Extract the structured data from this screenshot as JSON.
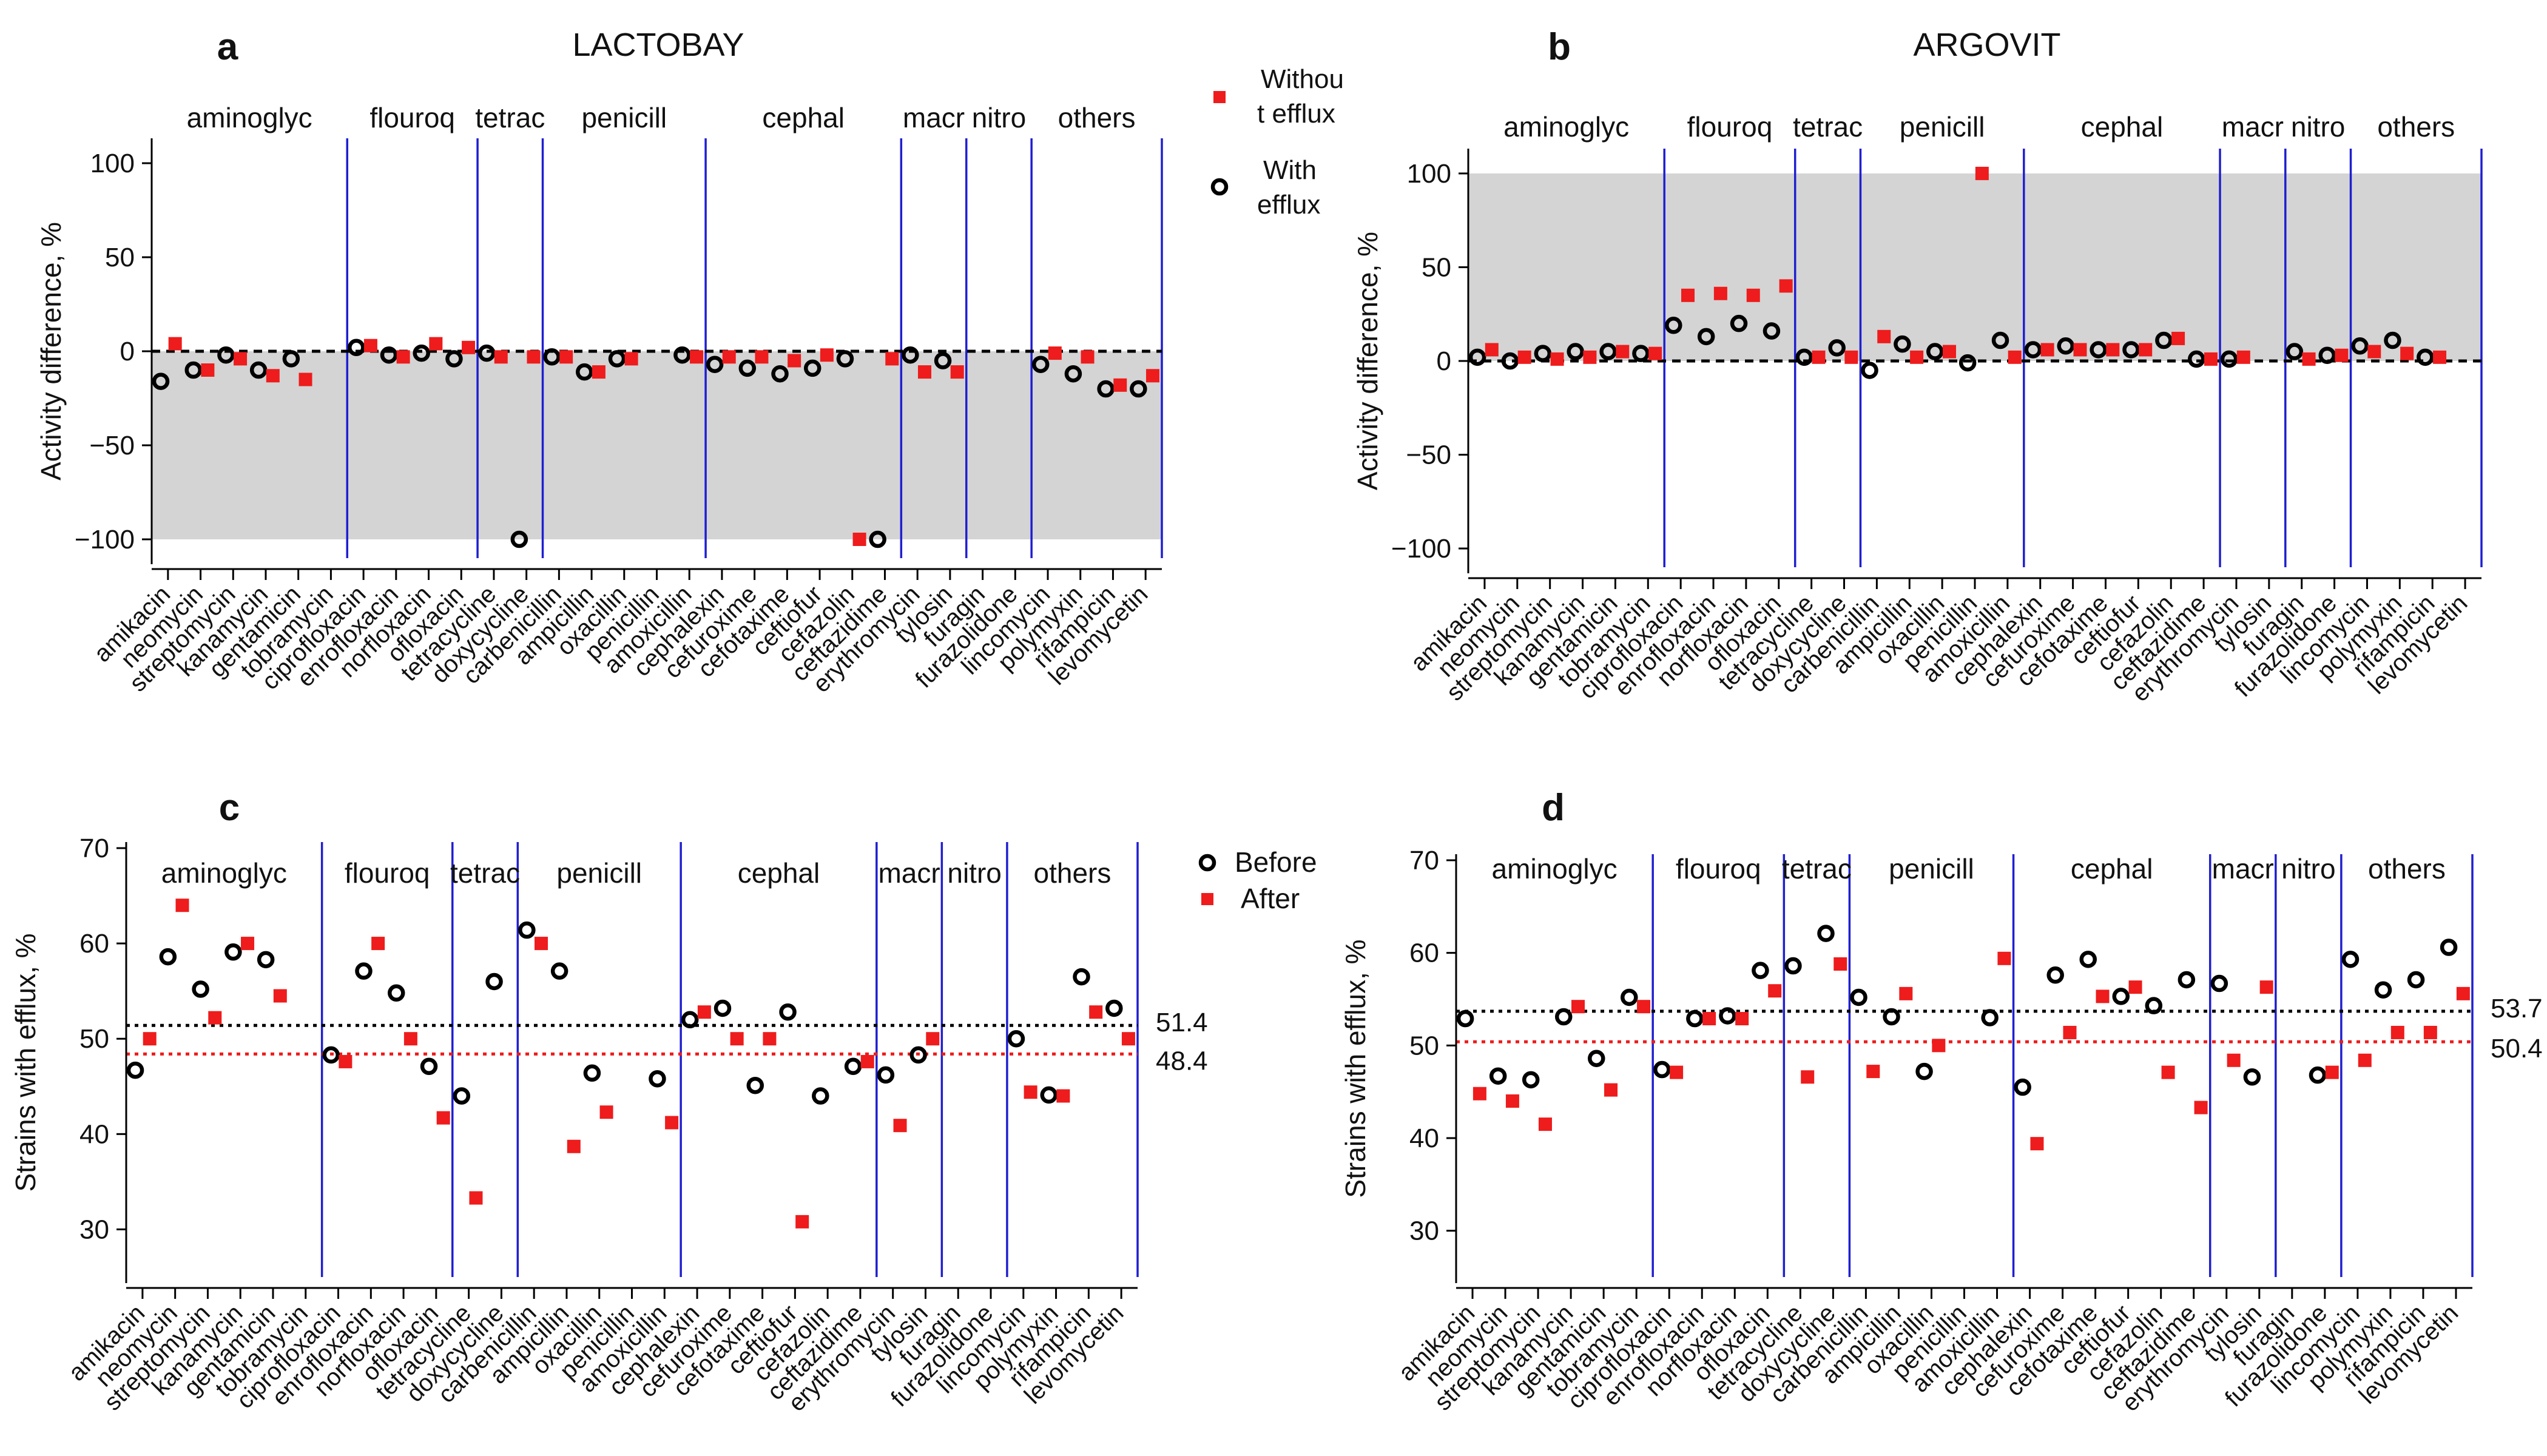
{
  "chart_data": [
    {
      "id": "a",
      "type": "scatter",
      "panel_letter": "a",
      "title": "LACTOBAY",
      "xlabel": "",
      "ylabel": "Activity difference, %",
      "ylim": [
        -110,
        110
      ],
      "yticks": [
        100,
        50,
        0,
        -50,
        -100
      ],
      "ytick_labels": [
        "100",
        "50",
        "0",
        "−50",
        "−100"
      ],
      "shaded_range": [
        -100,
        0
      ],
      "reference_lines": [
        {
          "value": 0,
          "color": "#000000",
          "label": ""
        }
      ],
      "legend": {
        "position": "top-right",
        "entries": [
          {
            "marker": "after",
            "lines": [
              "Withou",
              "t efflux"
            ]
          },
          {
            "marker": "before",
            "lines": [
              "With",
              "efflux"
            ]
          }
        ]
      },
      "groups": [
        {
          "label": "aminoglyc",
          "start": 0,
          "end": 6
        },
        {
          "label": "flouroq",
          "start": 6,
          "end": 10
        },
        {
          "label": "tetrac",
          "start": 10,
          "end": 12
        },
        {
          "label": "penicill",
          "start": 12,
          "end": 17
        },
        {
          "label": "cephal",
          "start": 17,
          "end": 23
        },
        {
          "label": "macr",
          "start": 23,
          "end": 25
        },
        {
          "label": "nitro",
          "start": 25,
          "end": 27
        },
        {
          "label": "others",
          "start": 27,
          "end": 31
        }
      ],
      "categories": [
        "amikacin",
        "neomycin",
        "streptomycin",
        "kanamycin",
        "gentamicin",
        "tobramycin",
        "ciprofloxacin",
        "enrofloxacin",
        "norfloxacin",
        "ofloxacin",
        "tetracycline",
        "doxycycline",
        "carbenicillin",
        "ampicillin",
        "oxacillin",
        "penicillin",
        "amoxicillin",
        "cephalexin",
        "cefuroxime",
        "cefotaxime",
        "ceftiofur",
        "cefazolin",
        "ceftazidime",
        "erythromycin",
        "tylosin",
        "furagin",
        "furazolidone",
        "lincomycin",
        "polymyxin",
        "rifampicin",
        "levomycetin"
      ],
      "series": [
        {
          "name": "With efflux",
          "marker": "before",
          "values": [
            -16,
            -10,
            -2,
            -10,
            -4,
            null,
            2,
            -2,
            -1,
            -4,
            -1,
            -100,
            -3,
            -11,
            -4,
            null,
            -2,
            -7,
            -9,
            -12,
            -9,
            -4,
            -100,
            -2,
            -5,
            null,
            null,
            -7,
            -12,
            -20,
            -20
          ]
        },
        {
          "name": "Without efflux",
          "marker": "after",
          "values": [
            4,
            -10,
            -4,
            -13,
            -15,
            null,
            3,
            -3,
            4,
            2,
            -3,
            -3,
            -3,
            -11,
            -4,
            null,
            -3,
            -3,
            -3,
            -5,
            -2,
            -100,
            -4,
            -11,
            -11,
            null,
            null,
            -1,
            -3,
            -18,
            -13
          ]
        }
      ]
    },
    {
      "id": "b",
      "type": "scatter",
      "panel_letter": "b",
      "title": "ARGOVIT",
      "xlabel": "",
      "ylabel": "Activity difference, %",
      "ylim": [
        -110,
        110
      ],
      "yticks": [
        100,
        50,
        0,
        -50,
        -100
      ],
      "ytick_labels": [
        "100",
        "50",
        "0",
        "−50",
        "−100"
      ],
      "shaded_range": [
        0,
        100
      ],
      "reference_lines": [
        {
          "value": 0,
          "color": "#000000",
          "label": ""
        }
      ],
      "legend": null,
      "groups": [
        {
          "label": "aminoglyc",
          "start": 0,
          "end": 6
        },
        {
          "label": "flouroq",
          "start": 6,
          "end": 10
        },
        {
          "label": "tetrac",
          "start": 10,
          "end": 12
        },
        {
          "label": "penicill",
          "start": 12,
          "end": 17
        },
        {
          "label": "cephal",
          "start": 17,
          "end": 23
        },
        {
          "label": "macr",
          "start": 23,
          "end": 25
        },
        {
          "label": "nitro",
          "start": 25,
          "end": 27
        },
        {
          "label": "others",
          "start": 27,
          "end": 31
        }
      ],
      "categories": [
        "amikacin",
        "neomycin",
        "streptomycin",
        "kanamycin",
        "gentamicin",
        "tobramycin",
        "ciprofloxacin",
        "enrofloxacin",
        "norfloxacin",
        "ofloxacin",
        "tetracycline",
        "doxycycline",
        "carbenicillin",
        "ampicillin",
        "oxacillin",
        "penicillin",
        "amoxicillin",
        "cephalexin",
        "cefuroxime",
        "cefotaxime",
        "ceftiofur",
        "cefazolin",
        "ceftazidime",
        "erythromycin",
        "tylosin",
        "furagin",
        "furazolidone",
        "lincomycin",
        "polymyxin",
        "rifampicin",
        "levomycetin"
      ],
      "series": [
        {
          "name": "With efflux",
          "marker": "before",
          "values": [
            2,
            0,
            4,
            5,
            5,
            4,
            19,
            13,
            20,
            16,
            2,
            7,
            -5,
            9,
            5,
            -1,
            11,
            6,
            8,
            6,
            6,
            11,
            1,
            1,
            null,
            5,
            3,
            8,
            11,
            2,
            null
          ]
        },
        {
          "name": "Without efflux",
          "marker": "after",
          "values": [
            6,
            2,
            1,
            2,
            5,
            4,
            35,
            36,
            35,
            40,
            2,
            2,
            13,
            2,
            5,
            100,
            2,
            6,
            6,
            6,
            6,
            12,
            1,
            2,
            null,
            1,
            3,
            5,
            4,
            2,
            null
          ]
        }
      ]
    },
    {
      "id": "c",
      "type": "scatter",
      "panel_letter": "c",
      "title": "",
      "xlabel": "",
      "ylabel": "Strains with efflux, %",
      "ylim": [
        25,
        70
      ],
      "yticks": [
        70,
        60,
        50,
        40,
        30
      ],
      "ytick_labels": [
        "70",
        "60",
        "50",
        "40",
        "30"
      ],
      "shaded_range": null,
      "reference_lines": [
        {
          "value": 51.4,
          "color": "#000000",
          "label": "51.4"
        },
        {
          "value": 48.4,
          "color": "#ee1c1c",
          "label": "48.4"
        }
      ],
      "legend": {
        "position": "top-right",
        "entries": [
          {
            "marker": "before",
            "lines": [
              "Before"
            ]
          },
          {
            "marker": "after",
            "lines": [
              "After"
            ]
          }
        ]
      },
      "groups": [
        {
          "label": "aminoglyc",
          "start": 0,
          "end": 6
        },
        {
          "label": "flouroq",
          "start": 6,
          "end": 10
        },
        {
          "label": "tetrac",
          "start": 10,
          "end": 12
        },
        {
          "label": "penicill",
          "start": 12,
          "end": 17
        },
        {
          "label": "cephal",
          "start": 17,
          "end": 23
        },
        {
          "label": "macr",
          "start": 23,
          "end": 25
        },
        {
          "label": "nitro",
          "start": 25,
          "end": 27
        },
        {
          "label": "others",
          "start": 27,
          "end": 31
        }
      ],
      "categories": [
        "amikacin",
        "neomycin",
        "streptomycin",
        "kanamycin",
        "gentamicin",
        "tobramycin",
        "ciprofloxacin",
        "enrofloxacin",
        "norfloxacin",
        "ofloxacin",
        "tetracycline",
        "doxycycline",
        "carbenicillin",
        "ampicillin",
        "oxacillin",
        "penicillin",
        "amoxicillin",
        "cephalexin",
        "cefuroxime",
        "cefotaxime",
        "ceftiofur",
        "cefazolin",
        "ceftazidime",
        "erythromycin",
        "tylosin",
        "furagin",
        "furazolidone",
        "lincomycin",
        "polymyxin",
        "rifampicin",
        "levomycetin"
      ],
      "series": [
        {
          "name": "Before",
          "marker": "before",
          "values": [
            46.7,
            58.6,
            55.2,
            59.1,
            58.3,
            null,
            48.3,
            57.1,
            54.8,
            47.1,
            44.0,
            56.0,
            61.4,
            57.1,
            46.4,
            null,
            45.8,
            52.0,
            53.2,
            45.1,
            52.8,
            44.0,
            47.1,
            46.2,
            48.3,
            null,
            null,
            50.0,
            44.1,
            56.5,
            53.2
          ]
        },
        {
          "name": "After",
          "marker": "after",
          "values": [
            50.0,
            64.0,
            52.2,
            60.0,
            54.5,
            null,
            47.6,
            60.0,
            50.0,
            41.7,
            33.3,
            null,
            60.0,
            38.7,
            42.3,
            null,
            41.2,
            52.8,
            50.0,
            50.0,
            30.8,
            null,
            47.6,
            40.9,
            50.0,
            null,
            null,
            44.4,
            44.0,
            52.8,
            50.0
          ]
        }
      ]
    },
    {
      "id": "d",
      "type": "scatter",
      "panel_letter": "d",
      "title": "",
      "xlabel": "",
      "ylabel": "Strains with efflux, %",
      "ylim": [
        25,
        70
      ],
      "yticks": [
        70,
        60,
        50,
        40,
        30
      ],
      "ytick_labels": [
        "70",
        "60",
        "50",
        "40",
        "30"
      ],
      "shaded_range": null,
      "reference_lines": [
        {
          "value": 53.7,
          "color": "#000000",
          "label": "53.7"
        },
        {
          "value": 50.4,
          "color": "#ee1c1c",
          "label": "50.4"
        }
      ],
      "legend": null,
      "groups": [
        {
          "label": "aminoglyc",
          "start": 0,
          "end": 6
        },
        {
          "label": "flouroq",
          "start": 6,
          "end": 10
        },
        {
          "label": "tetrac",
          "start": 10,
          "end": 12
        },
        {
          "label": "penicill",
          "start": 12,
          "end": 17
        },
        {
          "label": "cephal",
          "start": 17,
          "end": 23
        },
        {
          "label": "macr",
          "start": 23,
          "end": 25
        },
        {
          "label": "nitro",
          "start": 25,
          "end": 27
        },
        {
          "label": "others",
          "start": 27,
          "end": 31
        }
      ],
      "categories": [
        "amikacin",
        "neomycin",
        "streptomycin",
        "kanamycin",
        "gentamicin",
        "tobramycin",
        "ciprofloxacin",
        "enrofloxacin",
        "norfloxacin",
        "ofloxacin",
        "tetracycline",
        "doxycycline",
        "carbenicillin",
        "ampicillin",
        "oxacillin",
        "penicillin",
        "amoxicillin",
        "cephalexin",
        "cefuroxime",
        "cefotaxime",
        "ceftiofur",
        "cefazolin",
        "ceftazidime",
        "erythromycin",
        "tylosin",
        "furagin",
        "furazolidone",
        "lincomycin",
        "polymyxin",
        "rifampicin",
        "levomycetin"
      ],
      "series": [
        {
          "name": "Before",
          "marker": "before",
          "values": [
            52.9,
            46.7,
            46.3,
            53.1,
            48.6,
            55.2,
            47.4,
            52.9,
            53.2,
            58.1,
            58.6,
            62.1,
            55.2,
            53.1,
            47.2,
            null,
            53.0,
            45.5,
            57.6,
            59.3,
            55.3,
            54.3,
            57.1,
            56.7,
            46.6,
            null,
            46.8,
            59.3,
            56.0,
            57.1,
            60.6
          ]
        },
        {
          "name": "After",
          "marker": "after",
          "values": [
            44.8,
            44.0,
            41.5,
            54.2,
            45.2,
            54.2,
            47.1,
            52.9,
            52.9,
            55.9,
            46.6,
            58.8,
            47.2,
            55.6,
            50.0,
            null,
            59.4,
            39.4,
            51.4,
            55.3,
            56.3,
            47.1,
            43.3,
            48.4,
            56.3,
            null,
            47.1,
            48.4,
            51.4,
            51.4,
            55.6
          ]
        }
      ]
    }
  ]
}
